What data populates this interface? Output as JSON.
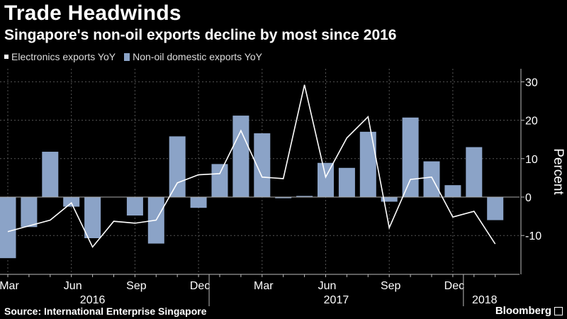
{
  "title": "Trade Headwinds",
  "subtitle": "Singapore's non-oil exports decline by most since 2016",
  "legend": {
    "line_label": "Electronics exports YoY",
    "bar_label": "Non-oil domestic exports YoY"
  },
  "footer": {
    "source": "Source: International Enterprise Singapore",
    "brand": "Bloomberg"
  },
  "chart_data": {
    "type": "bar",
    "title": "Trade Headwinds",
    "subtitle": "Singapore's non-oil exports decline by most since 2016",
    "ylabel": "Percent",
    "ylim": [
      -20,
      32
    ],
    "yticks": [
      30,
      20,
      10,
      0,
      -10
    ],
    "ytick_labels": [
      "30",
      "20",
      "10",
      "0",
      "-10"
    ],
    "x": [
      "2016-03",
      "2016-04",
      "2016-05",
      "2016-06",
      "2016-07",
      "2016-08",
      "2016-09",
      "2016-10",
      "2016-11",
      "2016-12",
      "2017-01",
      "2017-02",
      "2017-03",
      "2017-04",
      "2017-05",
      "2017-06",
      "2017-07",
      "2017-08",
      "2017-09",
      "2017-10",
      "2017-11",
      "2017-12",
      "2018-01",
      "2018-02"
    ],
    "month_ticks": [
      "Mar",
      "Jun",
      "Sep",
      "Dec",
      "Mar",
      "Jun",
      "Sep",
      "Dec"
    ],
    "month_tick_index": [
      0,
      3,
      6,
      9,
      12,
      15,
      18,
      21
    ],
    "year_labels": [
      "2016",
      "2017",
      "2018"
    ],
    "year_label_center": [
      4,
      15.5,
      22.5
    ],
    "year_separator_after": [
      9.5,
      21.5
    ],
    "grid": true,
    "legend_position": "top-left",
    "colors": {
      "bar": "#8ba3c7",
      "line": "#ffffff",
      "grid": "#555555",
      "zero": "#aaaaaa"
    },
    "series": [
      {
        "name": "Non-oil domestic exports YoY",
        "type": "bar",
        "values": [
          -15.9,
          -7.8,
          11.8,
          -2.5,
          -10.7,
          0,
          -4.8,
          -12.1,
          15.8,
          -2.8,
          8.6,
          21.2,
          16.6,
          -0.3,
          0.3,
          8.9,
          7.6,
          17,
          -1.2,
          20.7,
          9.3,
          3.1,
          13,
          -6
        ]
      },
      {
        "name": "Electronics exports YoY",
        "type": "line",
        "values": [
          -9,
          -7.5,
          -6,
          -1.5,
          -13,
          -6.3,
          -6.8,
          -6,
          3.7,
          5.8,
          6.1,
          17.3,
          5.2,
          4.8,
          29.2,
          5.2,
          15.4,
          20.9,
          -8,
          4.6,
          5.2,
          -5.2,
          -3.7,
          -12.2
        ]
      }
    ]
  }
}
